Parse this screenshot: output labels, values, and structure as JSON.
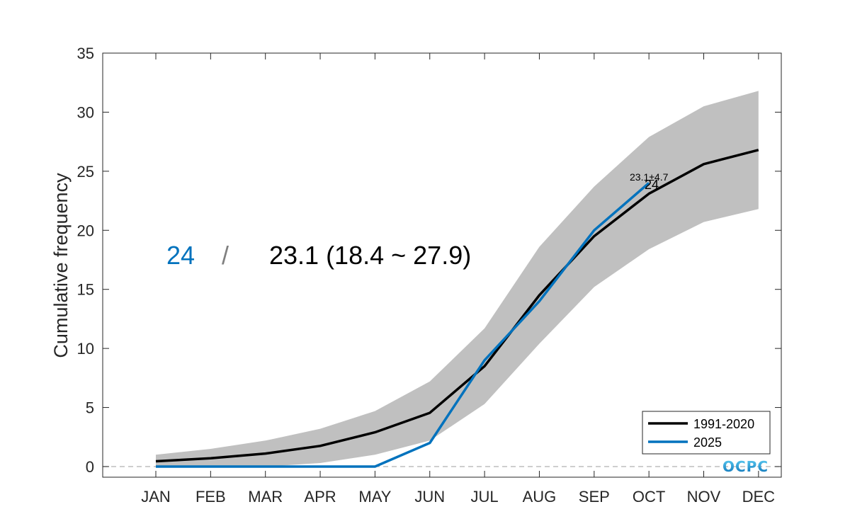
{
  "chart_data": {
    "type": "line",
    "ylabel": "Cumulative frequency",
    "xlabel": "",
    "ylim": [
      -0.9,
      35
    ],
    "yticks": [
      0,
      5,
      10,
      15,
      20,
      25,
      30,
      35
    ],
    "categories": [
      "JAN",
      "FEB",
      "MAR",
      "APR",
      "MAY",
      "JUN",
      "JUL",
      "AUG",
      "SEP",
      "OCT",
      "NOV",
      "DEC"
    ],
    "band": {
      "lower": [
        0.0,
        0.0,
        0.0,
        0.3,
        1.0,
        2.2,
        5.3,
        10.4,
        15.2,
        18.4,
        20.7,
        21.8
      ],
      "upper": [
        1.0,
        1.5,
        2.2,
        3.2,
        4.7,
        7.2,
        11.7,
        18.6,
        23.7,
        27.9,
        30.5,
        31.8
      ],
      "color": "#c0c0c0"
    },
    "series": [
      {
        "name": "1991-2020",
        "color": "#000000",
        "values": [
          0.45,
          0.7,
          1.1,
          1.75,
          2.9,
          4.55,
          8.5,
          14.5,
          19.5,
          23.1,
          25.6,
          26.8
        ]
      },
      {
        "name": "2025",
        "color": "#0072bd",
        "values": [
          0,
          0,
          0,
          0,
          0,
          2,
          9,
          14,
          20,
          24,
          null,
          null
        ]
      }
    ],
    "legend_position": "bottom-right",
    "zero_line": "dashed",
    "annotations": {
      "current_value": "24",
      "separator": "/",
      "climatology_text": "23.1 (18.4 ~ 27.9)",
      "oct_normal_label": "23.1±4.7",
      "oct_current_label": "24"
    },
    "logo_text": "OCPC"
  }
}
